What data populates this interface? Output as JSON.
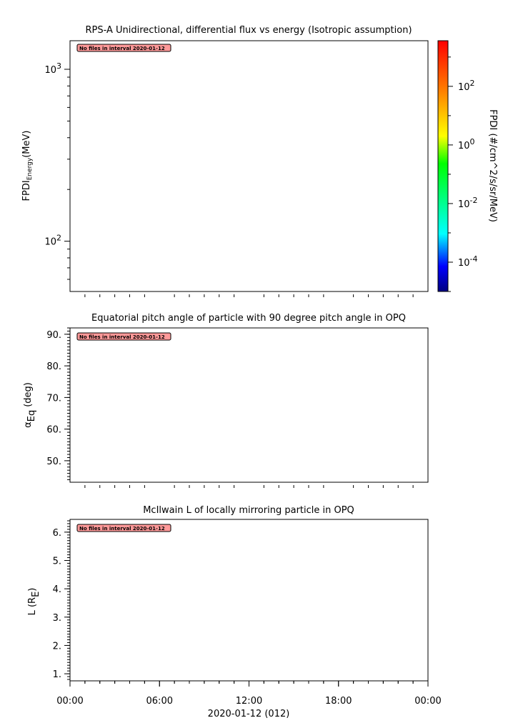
{
  "chart_data": [
    {
      "type": "heatmap",
      "title": "RPS-A Unidirectional, differential flux vs energy (Isotropic assumption)",
      "ylabel": {
        "main": "FPDI",
        "sub": "Energy",
        "unit": "(MeV)"
      },
      "yscale": "log",
      "ylim": [
        51,
        1466
      ],
      "yticks": [
        {
          "value": 1000,
          "base": "10",
          "exp": "3"
        },
        {
          "value": 100,
          "base": "10",
          "exp": "2"
        }
      ],
      "annotation": "No files in interval 2020-01-12",
      "values": [],
      "colorbar": {
        "label": "FPDI (#/cm^2/s/sr/MeV)",
        "scale": "log",
        "range": [
          1e-05,
          3600
        ],
        "ticks": [
          {
            "value": 100,
            "base": "10",
            "exp": "2"
          },
          {
            "value": 1,
            "base": "10",
            "exp": "0"
          },
          {
            "value": 0.01,
            "base": "10",
            "exp": "-2"
          },
          {
            "value": 0.0001,
            "base": "10",
            "exp": "-4"
          }
        ],
        "colormap": [
          "#000080",
          "#0000ff",
          "#00ffff",
          "#00ff00",
          "#ffff00",
          "#ff8000",
          "#ff0000"
        ]
      }
    },
    {
      "type": "line",
      "title": "Equatorial pitch angle of particle with 90 degree pitch angle in OPQ",
      "ylabel": {
        "main": "α",
        "sub": "Eq",
        "unit": "(deg)"
      },
      "ylim": [
        43.2,
        92.0
      ],
      "yticks": [
        {
          "value": 90,
          "label": "90."
        },
        {
          "value": 80,
          "label": "80."
        },
        {
          "value": 70,
          "label": "70."
        },
        {
          "value": 60,
          "label": "60."
        },
        {
          "value": 50,
          "label": "50."
        }
      ],
      "yminor_step": 1,
      "annotation": "No files in interval 2020-01-12",
      "values": []
    },
    {
      "type": "line",
      "title": "McIlwain L of locally mirroring particle in OPQ",
      "ylabel": {
        "main": "L (R",
        "sub": "E",
        "unit": ")"
      },
      "ylim": [
        0.75,
        6.45
      ],
      "yticks": [
        {
          "value": 6,
          "label": "6."
        },
        {
          "value": 5,
          "label": "5."
        },
        {
          "value": 4,
          "label": "4."
        },
        {
          "value": 3,
          "label": "3."
        },
        {
          "value": 2,
          "label": "2."
        },
        {
          "value": 1,
          "label": "1."
        }
      ],
      "yminor_step": 0.1,
      "annotation": "No files in interval 2020-01-12",
      "values": []
    }
  ],
  "xaxis": {
    "range_hours": [
      0,
      24
    ],
    "ticks": [
      {
        "hour": 0,
        "label": "00:00"
      },
      {
        "hour": 6,
        "label": "06:00"
      },
      {
        "hour": 12,
        "label": "12:00"
      },
      {
        "hour": 18,
        "label": "18:00"
      },
      {
        "hour": 24,
        "label": "00:00"
      }
    ],
    "minor_step_hours": 1,
    "label": "2020-01-12 (012)"
  }
}
